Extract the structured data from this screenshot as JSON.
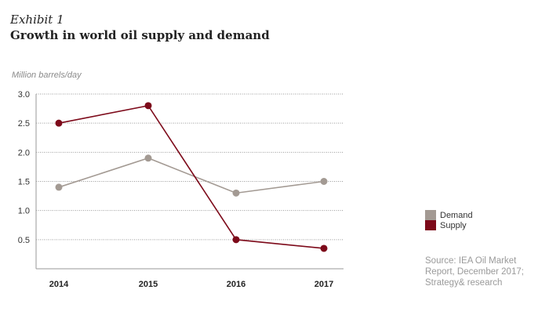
{
  "header": {
    "exhibit": "Exhibit 1",
    "title": "Growth in world oil supply and demand"
  },
  "units_label": "Million barrels/day",
  "source": "Source: IEA Oil Market Report, December 2017; Strategy& research",
  "chart_data": {
    "type": "line",
    "title": "Growth in world oil supply and demand",
    "xlabel": "",
    "ylabel": "Million barrels/day",
    "categories": [
      "2014",
      "2015",
      "2016",
      "2017"
    ],
    "ylim": [
      0,
      3.0
    ],
    "yticks": [
      0.5,
      1.0,
      1.5,
      2.0,
      2.5,
      3.0
    ],
    "ytick_labels": [
      "0.5",
      "1.0",
      "1.5",
      "2.0",
      "2.5",
      "3.0"
    ],
    "grid": true,
    "legend_position": "right",
    "series": [
      {
        "name": "Demand",
        "color": "#a39a93",
        "values": [
          1.4,
          1.9,
          1.3,
          1.5
        ]
      },
      {
        "name": "Supply",
        "color": "#7d0a1a",
        "values": [
          2.5,
          2.8,
          0.5,
          0.35
        ]
      }
    ]
  }
}
